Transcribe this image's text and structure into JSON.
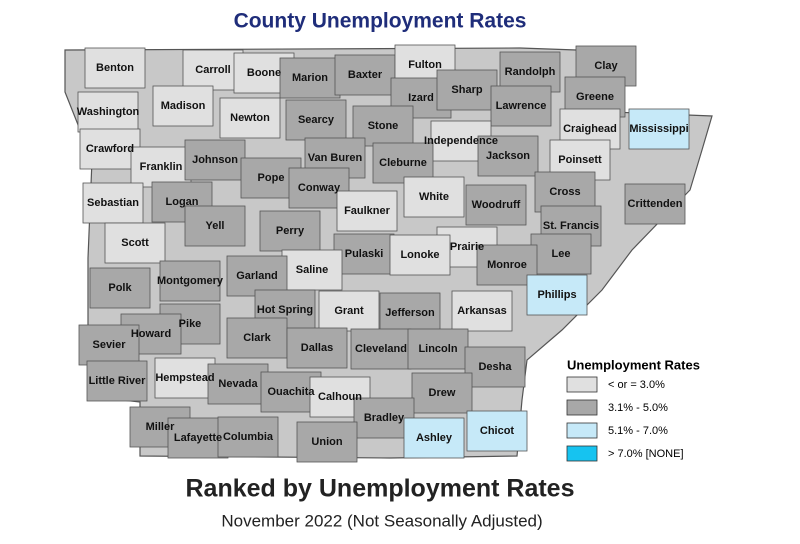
{
  "title": "County Unemployment Rates",
  "heading": "Ranked by Unemployment Rates",
  "subtitle": "November 2022 (Not Seasonally Adjusted)",
  "legend": {
    "title": "Unemployment Rates",
    "items": [
      {
        "label": "< or = 3.0%",
        "color": "#e0e0e0"
      },
      {
        "label": "3.1% - 5.0%",
        "color": "#a8a8a8"
      },
      {
        "label": "5.1% - 7.0%",
        "color": "#c6e9f8"
      },
      {
        "label": "> 7.0% [NONE]",
        "color": "#16c3f0"
      }
    ]
  },
  "counties": [
    {
      "name": "Benton",
      "class": 0
    },
    {
      "name": "Carroll",
      "class": 0
    },
    {
      "name": "Boone",
      "class": 0
    },
    {
      "name": "Marion",
      "class": 1
    },
    {
      "name": "Baxter",
      "class": 1
    },
    {
      "name": "Fulton",
      "class": 0
    },
    {
      "name": "Randolph",
      "class": 1
    },
    {
      "name": "Clay",
      "class": 1
    },
    {
      "name": "Washington",
      "class": 0
    },
    {
      "name": "Madison",
      "class": 0
    },
    {
      "name": "Newton",
      "class": 0
    },
    {
      "name": "Searcy",
      "class": 1
    },
    {
      "name": "Izard",
      "class": 1
    },
    {
      "name": "Sharp",
      "class": 1
    },
    {
      "name": "Lawrence",
      "class": 1
    },
    {
      "name": "Greene",
      "class": 1
    },
    {
      "name": "Stone",
      "class": 1
    },
    {
      "name": "Independence",
      "class": 0
    },
    {
      "name": "Craighead",
      "class": 0
    },
    {
      "name": "Mississippi",
      "class": 2
    },
    {
      "name": "Crawford",
      "class": 0
    },
    {
      "name": "Franklin",
      "class": 0
    },
    {
      "name": "Johnson",
      "class": 1
    },
    {
      "name": "Pope",
      "class": 1
    },
    {
      "name": "Van Buren",
      "class": 1
    },
    {
      "name": "Cleburne",
      "class": 1
    },
    {
      "name": "Jackson",
      "class": 1
    },
    {
      "name": "Poinsett",
      "class": 0
    },
    {
      "name": "Sebastian",
      "class": 0
    },
    {
      "name": "Logan",
      "class": 1
    },
    {
      "name": "Conway",
      "class": 1
    },
    {
      "name": "Faulkner",
      "class": 0
    },
    {
      "name": "White",
      "class": 0
    },
    {
      "name": "Woodruff",
      "class": 1
    },
    {
      "name": "Cross",
      "class": 1
    },
    {
      "name": "Crittenden",
      "class": 1
    },
    {
      "name": "Scott",
      "class": 0
    },
    {
      "name": "Yell",
      "class": 1
    },
    {
      "name": "Perry",
      "class": 1
    },
    {
      "name": "St. Francis",
      "class": 1
    },
    {
      "name": "Prairie",
      "class": 0
    },
    {
      "name": "Pulaski",
      "class": 1
    },
    {
      "name": "Lonoke",
      "class": 0
    },
    {
      "name": "Lee",
      "class": 1
    },
    {
      "name": "Monroe",
      "class": 1
    },
    {
      "name": "Saline",
      "class": 0
    },
    {
      "name": "Polk",
      "class": 1
    },
    {
      "name": "Montgomery",
      "class": 1
    },
    {
      "name": "Garland",
      "class": 1
    },
    {
      "name": "Phillips",
      "class": 2
    },
    {
      "name": "Hot Spring",
      "class": 1
    },
    {
      "name": "Grant",
      "class": 0
    },
    {
      "name": "Jefferson",
      "class": 1
    },
    {
      "name": "Arkansas",
      "class": 0
    },
    {
      "name": "Pike",
      "class": 1
    },
    {
      "name": "Howard",
      "class": 1
    },
    {
      "name": "Sevier",
      "class": 1
    },
    {
      "name": "Clark",
      "class": 1
    },
    {
      "name": "Dallas",
      "class": 1
    },
    {
      "name": "Cleveland",
      "class": 1
    },
    {
      "name": "Lincoln",
      "class": 1
    },
    {
      "name": "Desha",
      "class": 1
    },
    {
      "name": "Hempstead",
      "class": 0
    },
    {
      "name": "Little River",
      "class": 1
    },
    {
      "name": "Nevada",
      "class": 1
    },
    {
      "name": "Ouachita",
      "class": 1
    },
    {
      "name": "Calhoun",
      "class": 0
    },
    {
      "name": "Drew",
      "class": 1
    },
    {
      "name": "Bradley",
      "class": 1
    },
    {
      "name": "Miller",
      "class": 1
    },
    {
      "name": "Lafayette",
      "class": 1
    },
    {
      "name": "Columbia",
      "class": 1
    },
    {
      "name": "Union",
      "class": 1
    },
    {
      "name": "Ashley",
      "class": 2
    },
    {
      "name": "Chicot",
      "class": 2
    }
  ]
}
